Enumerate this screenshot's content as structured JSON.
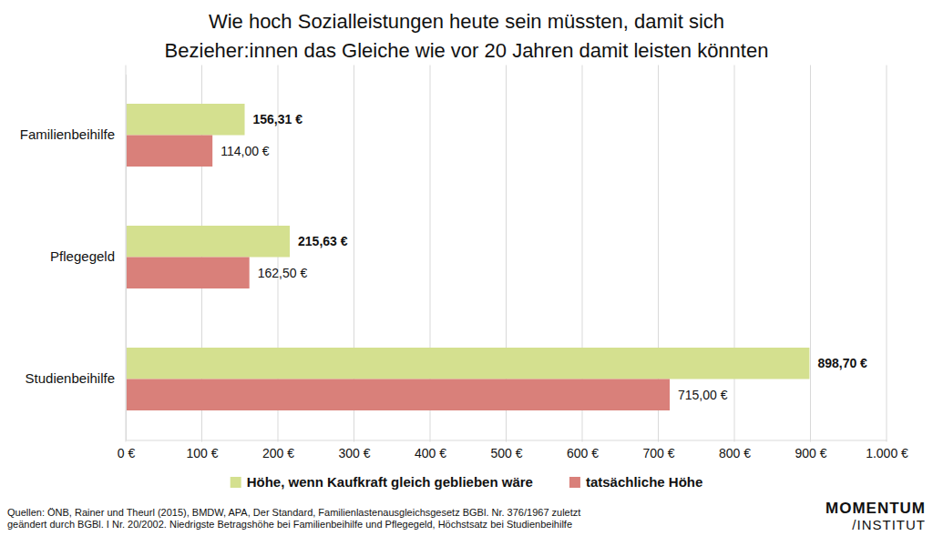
{
  "chart_data": {
    "type": "bar",
    "orientation": "horizontal",
    "title": [
      "Wie hoch Sozialleistungen heute sein müssten, damit sich",
      "Bezieher:innen das Gleiche wie vor 20 Jahren damit leisten könnten"
    ],
    "categories": [
      "Familienbeihilfe",
      "Pflegegeld",
      "Studienbeihilfe"
    ],
    "series": [
      {
        "name": "Höhe, wenn Kaufkraft gleich geblieben wäre",
        "color": "#d4e08f",
        "values": [
          156.31,
          215.63,
          898.7
        ],
        "value_labels": [
          "156,31 €",
          "215,63 €",
          "898,70 €"
        ]
      },
      {
        "name": "tatsächliche Höhe",
        "color": "#d9807a",
        "values": [
          114,
          162.5,
          715
        ],
        "value_labels": [
          "114,00 €",
          "162,50 €",
          "715,00 €"
        ]
      }
    ],
    "xlim": [
      0,
      1000
    ],
    "xticks": [
      {
        "value": 0,
        "label": "0 €"
      },
      {
        "value": 100,
        "label": "100 €"
      },
      {
        "value": 200,
        "label": "200 €"
      },
      {
        "value": 300,
        "label": "300 €"
      },
      {
        "value": 400,
        "label": "400 €"
      },
      {
        "value": 500,
        "label": "500 €"
      },
      {
        "value": 600,
        "label": "600 €"
      },
      {
        "value": 700,
        "label": "700 €"
      },
      {
        "value": 800,
        "label": "800 €"
      },
      {
        "value": 900,
        "label": "900 €"
      },
      {
        "value": 1000,
        "label": "1.000 €"
      }
    ],
    "grid": true,
    "data_labels": true,
    "legend": "bottom",
    "source": [
      "Quellen: ÖNB, Rainer und Theurl (2015), BMDW, APA, Der Standard, Familienlastenausgleichsgesetz BGBl. Nr. 376/1967 zuletzt",
      "geändert durch BGBl. I Nr. 20/2002. Niedrigste Betragshöhe bei Familienbeihilfe und Pflegegeld, Höchstsatz bei Studienbeihilfe"
    ],
    "logo": [
      "MOMENTUM",
      "/INSTITUT"
    ]
  }
}
